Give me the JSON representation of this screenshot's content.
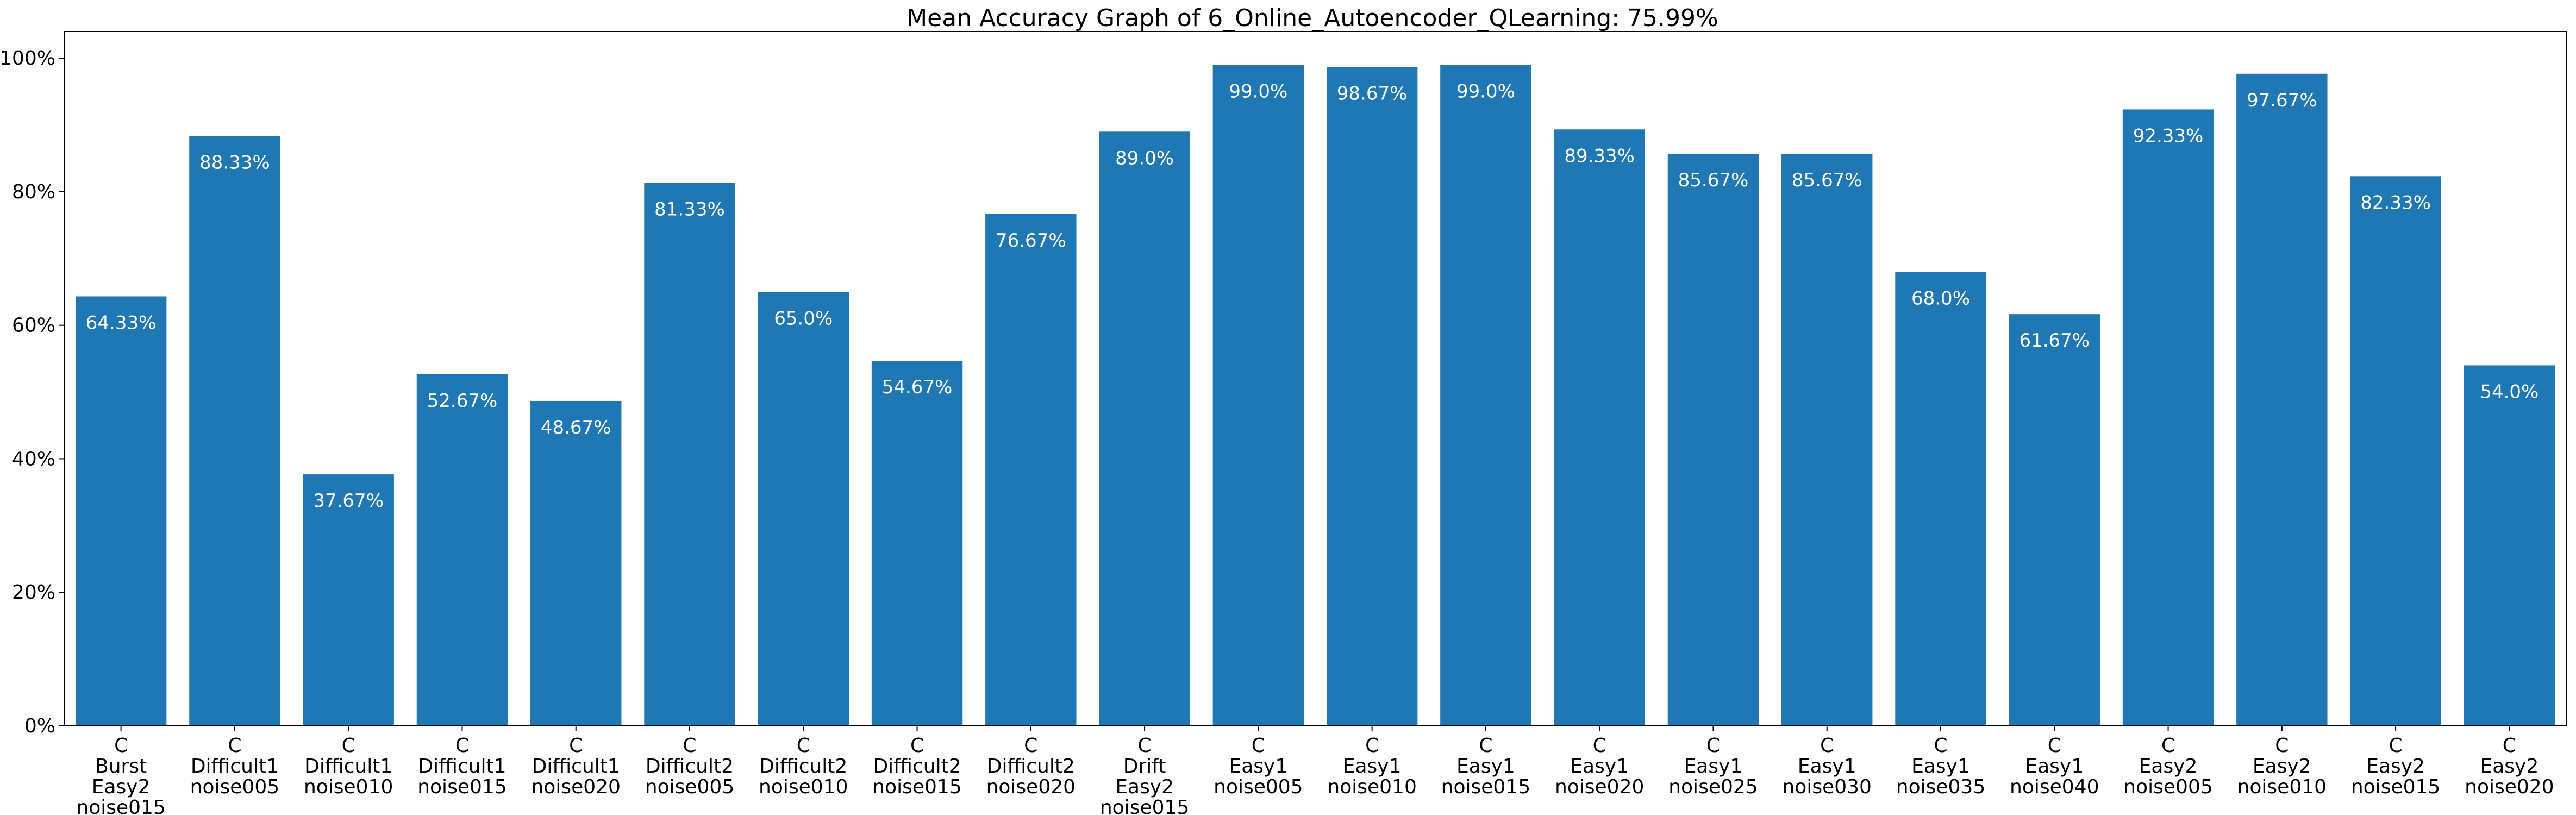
{
  "chart_data": {
    "type": "bar",
    "title": "Mean Accuracy Graph of 6_Online_Autoencoder_QLearning: 75.99%",
    "xlabel": "",
    "ylabel": "",
    "ylim": [
      0,
      104
    ],
    "yticks": [
      "0%",
      "20%",
      "40%",
      "60%",
      "80%",
      "100%"
    ],
    "ytick_values": [
      0,
      20,
      40,
      60,
      80,
      100
    ],
    "bar_color": "#1f77b4",
    "label_color": "#ffffff",
    "grid": false,
    "categories": [
      [
        "C",
        "Burst",
        "Easy2",
        "noise015"
      ],
      [
        "C",
        "Difficult1",
        "noise005"
      ],
      [
        "C",
        "Difficult1",
        "noise010"
      ],
      [
        "C",
        "Difficult1",
        "noise015"
      ],
      [
        "C",
        "Difficult1",
        "noise020"
      ],
      [
        "C",
        "Difficult2",
        "noise005"
      ],
      [
        "C",
        "Difficult2",
        "noise010"
      ],
      [
        "C",
        "Difficult2",
        "noise015"
      ],
      [
        "C",
        "Difficult2",
        "noise020"
      ],
      [
        "C",
        "Drift",
        "Easy2",
        "noise015"
      ],
      [
        "C",
        "Easy1",
        "noise005"
      ],
      [
        "C",
        "Easy1",
        "noise010"
      ],
      [
        "C",
        "Easy1",
        "noise015"
      ],
      [
        "C",
        "Easy1",
        "noise020"
      ],
      [
        "C",
        "Easy1",
        "noise025"
      ],
      [
        "C",
        "Easy1",
        "noise030"
      ],
      [
        "C",
        "Easy1",
        "noise035"
      ],
      [
        "C",
        "Easy1",
        "noise040"
      ],
      [
        "C",
        "Easy2",
        "noise005"
      ],
      [
        "C",
        "Easy2",
        "noise010"
      ],
      [
        "C",
        "Easy2",
        "noise015"
      ],
      [
        "C",
        "Easy2",
        "noise020"
      ]
    ],
    "values": [
      64.33,
      88.33,
      37.67,
      52.67,
      48.67,
      81.33,
      65.0,
      54.67,
      76.67,
      89.0,
      99.0,
      98.67,
      99.0,
      89.33,
      85.67,
      85.67,
      68.0,
      61.67,
      92.33,
      97.67,
      82.33,
      54.0
    ],
    "value_labels": [
      "64.33%",
      "88.33%",
      "37.67%",
      "52.67%",
      "48.67%",
      "81.33%",
      "65.0%",
      "54.67%",
      "76.67%",
      "89.0%",
      "99.0%",
      "98.67%",
      "99.0%",
      "89.33%",
      "85.67%",
      "85.67%",
      "68.0%",
      "61.67%",
      "92.33%",
      "97.67%",
      "82.33%",
      "54.0%"
    ]
  }
}
